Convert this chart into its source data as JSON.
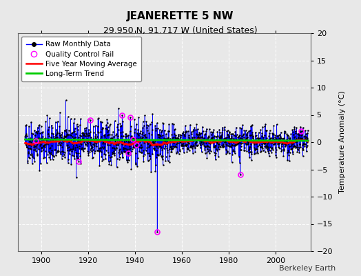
{
  "title": "JEANERETTE 5 NW",
  "subtitle": "29.950 N, 91.717 W (United States)",
  "ylabel": "Temperature Anomaly (°C)",
  "credit": "Berkeley Earth",
  "xlim": [
    1890,
    2015
  ],
  "ylim": [
    -20,
    20
  ],
  "yticks": [
    -20,
    -15,
    -10,
    -5,
    0,
    5,
    10,
    15,
    20
  ],
  "xticks": [
    1900,
    1920,
    1940,
    1960,
    1980,
    2000
  ],
  "bg_color": "#e8e8e8",
  "plot_bg_color": "#e8e8e8",
  "raw_color": "#0000ff",
  "dot_color": "#000000",
  "qc_color": "#ff00ff",
  "ma_color": "#ff0000",
  "trend_color": "#00cc00",
  "legend_entries": [
    "Raw Monthly Data",
    "Quality Control Fail",
    "Five Year Moving Average",
    "Long-Term Trend"
  ],
  "seed": 42,
  "start_year": 1893,
  "end_year": 2013
}
